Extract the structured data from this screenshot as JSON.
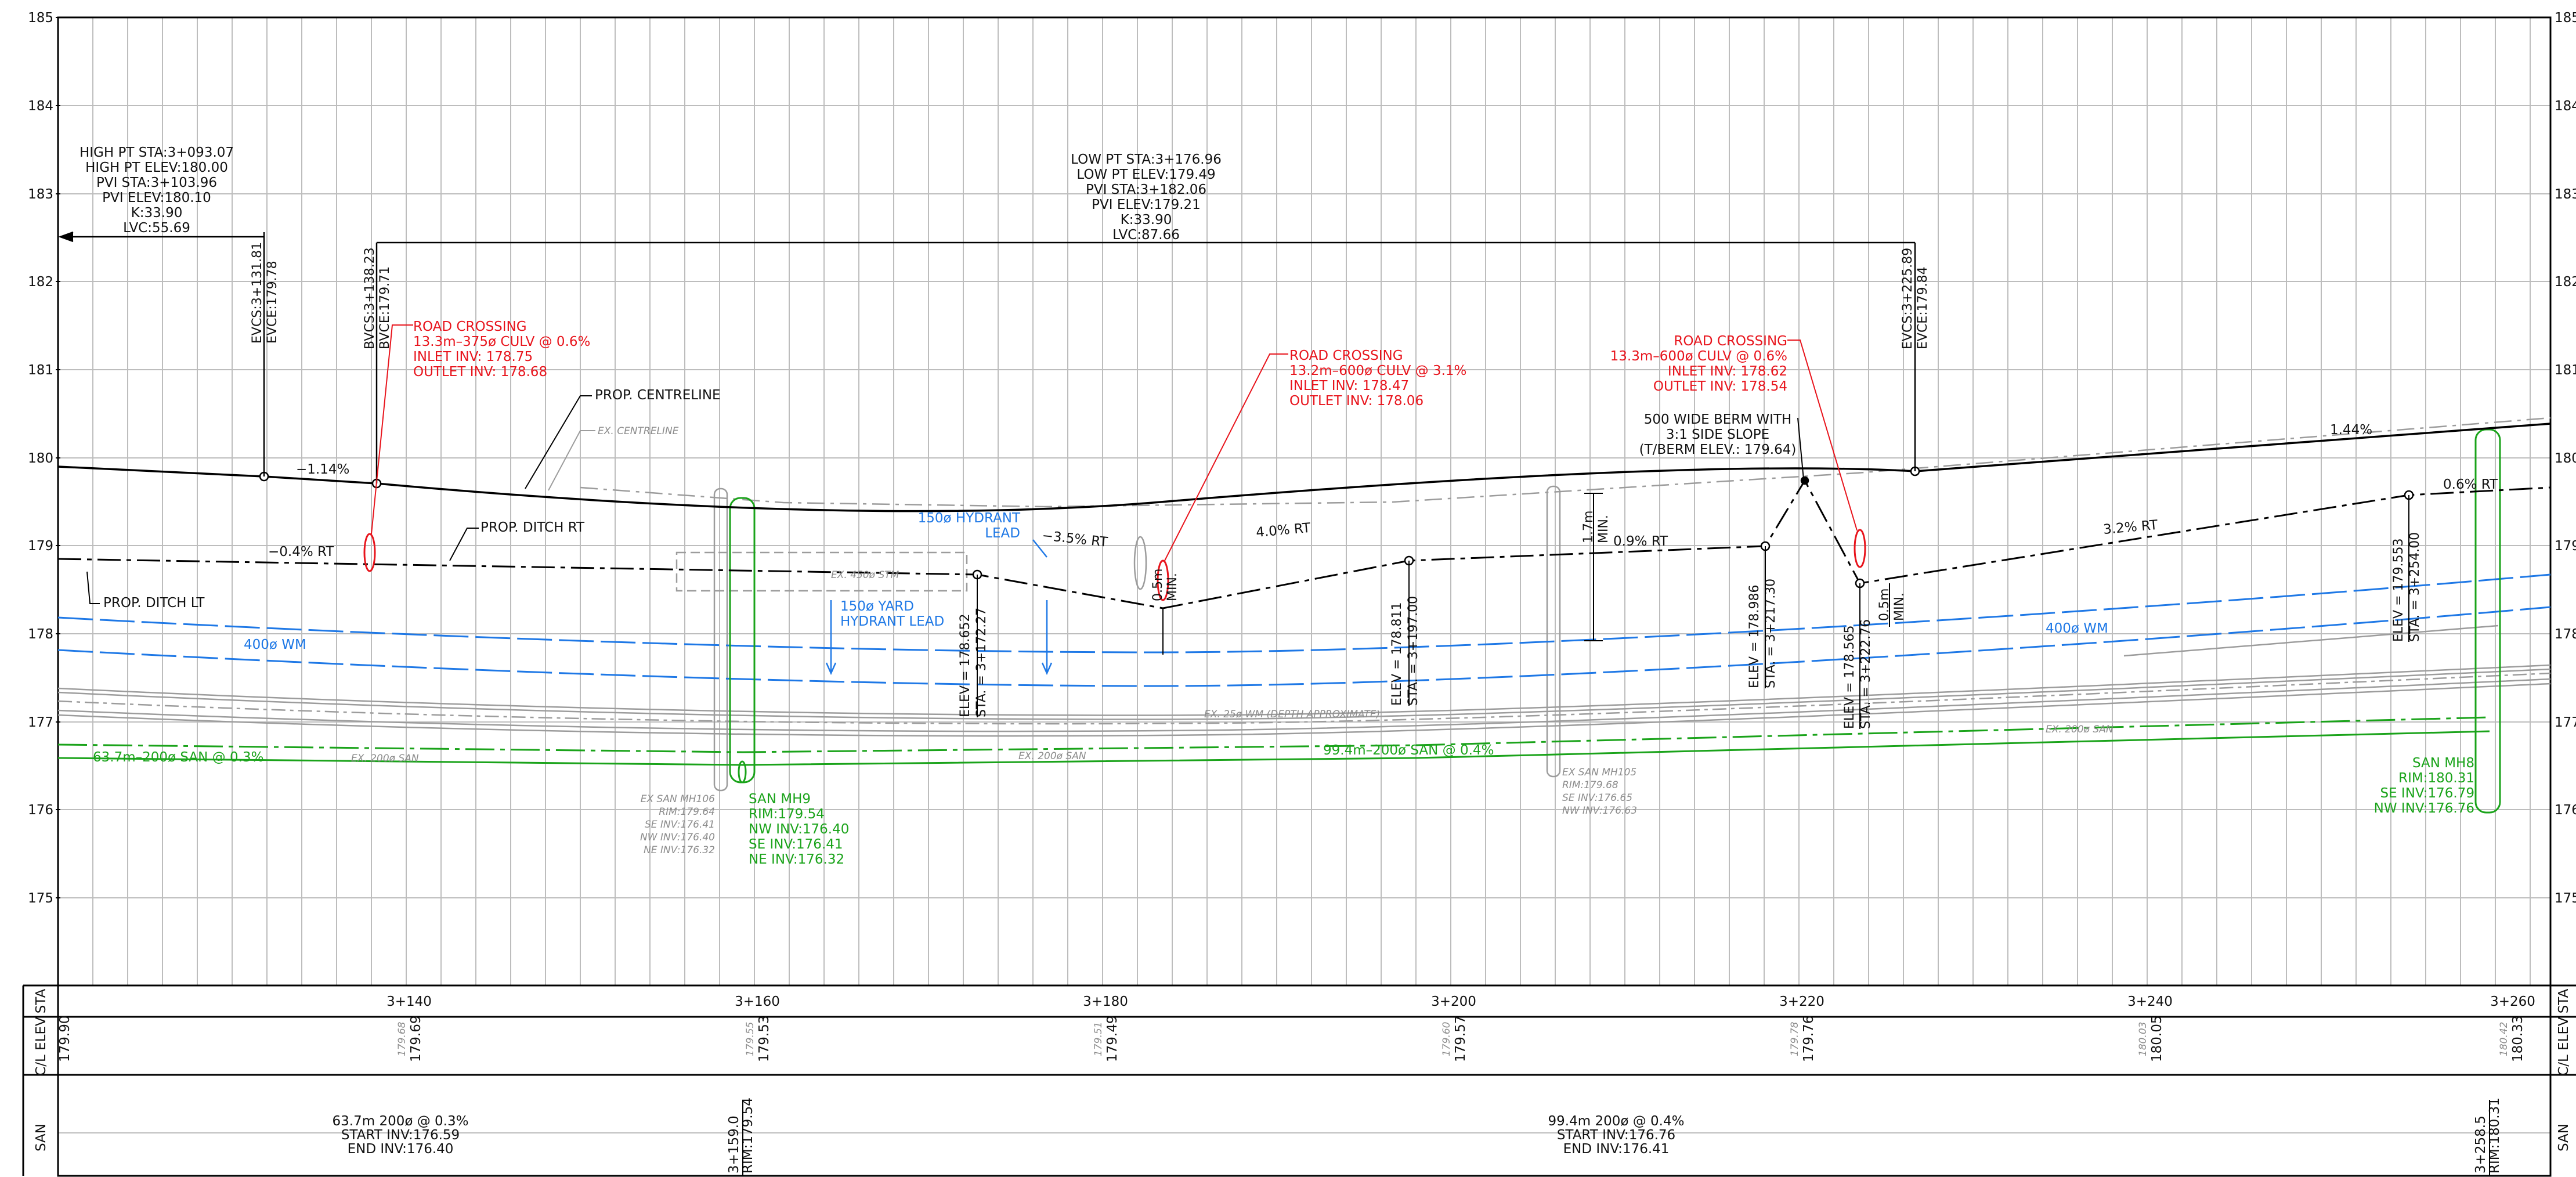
{
  "elevation_axis": {
    "ticks": [
      "185",
      "184",
      "183",
      "182",
      "181",
      "180",
      "179",
      "178",
      "177",
      "176",
      "175"
    ]
  },
  "station_ticks": [
    "3+140",
    "3+160",
    "3+180",
    "3+200",
    "3+220",
    "3+240",
    "3+260"
  ],
  "curve1": {
    "lines": [
      "HIGH PT STA:3+093.07",
      "HIGH PT ELEV:180.00",
      "PVI STA:3+103.96",
      "PVI ELEV:180.10",
      "K:33.90",
      "LVC:55.69"
    ],
    "evc": [
      "EVCS:3+131.81",
      "EVCE:179.78"
    ],
    "bvc": [
      "BVCS:3+138.23",
      "BVCE:179.71"
    ]
  },
  "curve2": {
    "lines": [
      "LOW PT STA:3+176.96",
      "LOW PT ELEV:179.49",
      "PVI STA:3+182.06",
      "PVI ELEV:179.21",
      "K:33.90",
      "LVC:87.66"
    ],
    "evc": [
      "EVCS:3+225.89",
      "EVCE:179.84"
    ]
  },
  "crossing1": [
    "ROAD CROSSING",
    "13.3m–375ø CULV @ 0.6%",
    "INLET INV: 178.75",
    "OUTLET INV: 178.68"
  ],
  "crossing2": [
    "ROAD CROSSING",
    "13.2m–600ø CULV @ 3.1%",
    "INLET INV: 178.47",
    "OUTLET INV: 178.06"
  ],
  "crossing3": [
    "ROAD CROSSING",
    "13.3m–600ø CULV @ 0.6%",
    "INLET INV: 178.62",
    "OUTLET INV: 178.54"
  ],
  "berm": [
    "500 WIDE BERM WITH",
    "3:1 SIDE SLOPE",
    "(T/BERM ELEV.: 179.64)"
  ],
  "labels": {
    "prop_centreline": "PROP. CENTRELINE",
    "ex_centreline": "EX. CENTRELINE",
    "prop_ditch_rt": "PROP. DITCH RT",
    "prop_ditch_lt": "PROP. DITCH LT",
    "grade_neg114": "−1.14%",
    "grade_neg04rt": "−0.4% RT",
    "grade_neg35rt": "−3.5% RT",
    "grade_40rt": "4.0% RT",
    "grade_09rt": "0.9% RT",
    "grade_32rt": "3.2% RT",
    "grade_06rt": "0.6% RT",
    "grade_144": "1.44%",
    "min_05a": "0.5m",
    "min_05b": "0.5m",
    "min_word": "MIN.",
    "min_17": "1.7m",
    "hydrant_lead": [
      "150ø HYDRANT",
      "LEAD"
    ],
    "yard_hydrant": [
      "150ø YARD",
      "HYDRANT LEAD"
    ],
    "wm_left": "400ø WM",
    "wm_right": "400ø WM",
    "ex_450_stm": "EX. 450ø STM",
    "ex_25_wm": "EX. 25ø WM (DEPTH APPROXIMATE)",
    "ex_200_san_a": "EX. 200ø SAN",
    "ex_200_san_b": "EX. 200ø SAN",
    "ex_200_san_c": "EX. 200ø SAN",
    "san_left": "63.7m–200ø SAN @ 0.3%",
    "san_right": "99.4m–200ø SAN @ 0.4%"
  },
  "ditch_points": {
    "p1": [
      "ELEV = 178.652",
      "STA. = 3+172.27"
    ],
    "p2": [
      "ELEV = 178.811",
      "STA. = 3+197.00"
    ],
    "p3": [
      "ELEV = 178.986",
      "STA. = 3+217.30"
    ],
    "p4": [
      "ELEV = 178.565",
      "STA. = 3+222.76"
    ],
    "p5": [
      "ELEV = 179.553",
      "STA. = 3+254.00"
    ]
  },
  "manholes": {
    "ex_mh106": [
      "EX SAN MH106",
      "RIM:179.64",
      "SE INV:176.41",
      "NW INV:176.40",
      "NE INV:176.32"
    ],
    "mh9": [
      "SAN MH9",
      "RIM:179.54",
      "NW INV:176.40",
      "SE INV:176.41",
      "NE INV:176.32"
    ],
    "ex_mh105": [
      "EX SAN MH105",
      "RIM:179.68",
      "SE INV:176.65",
      "NW INV:176.63"
    ],
    "mh8": [
      "SAN MH8",
      "RIM:180.31",
      "SE INV:176.79",
      "NW INV:176.76"
    ]
  },
  "table": {
    "row_labels": [
      "STA",
      "C/L ELEV",
      "SAN"
    ],
    "elev_pairs": [
      {
        "existing": "",
        "proposed": "179.90"
      },
      {
        "existing": "179.68",
        "proposed": "179.69"
      },
      {
        "existing": "179.55",
        "proposed": "179.53"
      },
      {
        "existing": "179.51",
        "proposed": "179.49"
      },
      {
        "existing": "179.60",
        "proposed": "179.57"
      },
      {
        "existing": "179.78",
        "proposed": "179.76"
      },
      {
        "existing": "180.03",
        "proposed": "180.05"
      },
      {
        "existing": "180.42",
        "proposed": "180.33"
      }
    ],
    "san_left": [
      "63.7m 200ø @ 0.3%",
      "START INV:176.59",
      "END INV:176.40"
    ],
    "san_right": [
      "99.4m 200ø @ 0.4%",
      "START INV:176.76",
      "END INV:176.41"
    ],
    "san_mh_left": [
      "3+159.0",
      "RIM:179.54"
    ],
    "san_mh_right": [
      "3+258.5",
      "RIM:180.31"
    ]
  }
}
